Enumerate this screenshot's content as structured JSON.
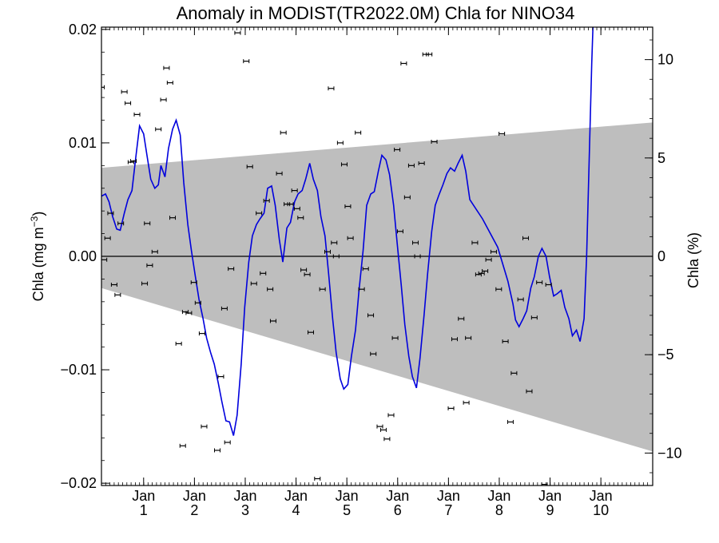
{
  "chart_data": {
    "type": "line",
    "title": "Anomaly in MODIST(TR2022.0M) Chla for NINO34",
    "ylabel_left": "Chla (mg m⁻³)",
    "ylabel_left_main": "Chla (mg m",
    "ylabel_left_sup": "−3",
    "ylabel_left_close": ")",
    "ylabel_right": "Chla (%)",
    "x_range": [
      0,
      10.85
    ],
    "y_left_range": [
      -0.0202,
      0.0202
    ],
    "y_right_range": [
      -11.65,
      11.65
    ],
    "x_ticks": [
      {
        "x": 0.83,
        "label": "Jan",
        "sub": "1"
      },
      {
        "x": 1.83,
        "label": "Jan",
        "sub": "2"
      },
      {
        "x": 2.83,
        "label": "Jan",
        "sub": "3"
      },
      {
        "x": 3.83,
        "label": "Jan",
        "sub": "4"
      },
      {
        "x": 4.83,
        "label": "Jan",
        "sub": "5"
      },
      {
        "x": 5.83,
        "label": "Jan",
        "sub": "6"
      },
      {
        "x": 6.83,
        "label": "Jan",
        "sub": "7"
      },
      {
        "x": 7.83,
        "label": "Jan",
        "sub": "8"
      },
      {
        "x": 8.83,
        "label": "Jan",
        "sub": "9"
      },
      {
        "x": 9.83,
        "label": "Jan",
        "sub": "10"
      }
    ],
    "y_left_ticks": [
      {
        "v": 0.02,
        "label": "0.02"
      },
      {
        "v": 0.01,
        "label": "0.01"
      },
      {
        "v": 0.0,
        "label": "0.00"
      },
      {
        "v": -0.01,
        "label": "−0.01"
      },
      {
        "v": -0.02,
        "label": "−0.02"
      }
    ],
    "y_right_ticks": [
      {
        "v": 10,
        "label": "10"
      },
      {
        "v": 5,
        "label": "5"
      },
      {
        "v": 0,
        "label": "0"
      },
      {
        "v": -5,
        "label": "−5"
      },
      {
        "v": -10,
        "label": "−10"
      }
    ],
    "shaded_band": {
      "upper": [
        [
          0,
          0.0078
        ],
        [
          10.85,
          0.0118
        ]
      ],
      "lower": [
        [
          0,
          -0.0028
        ],
        [
          10.85,
          -0.0172
        ]
      ],
      "color": "#bebebe"
    },
    "zero_line": 0.0,
    "series": [
      {
        "color": "#0000dd",
        "points": [
          [
            0.0,
            0.0053
          ],
          [
            0.08,
            0.0055
          ],
          [
            0.15,
            0.0048
          ],
          [
            0.22,
            0.0035
          ],
          [
            0.3,
            0.0024
          ],
          [
            0.37,
            0.0023
          ],
          [
            0.45,
            0.0038
          ],
          [
            0.52,
            0.005
          ],
          [
            0.6,
            0.0058
          ],
          [
            0.67,
            0.0085
          ],
          [
            0.75,
            0.0115
          ],
          [
            0.83,
            0.0108
          ],
          [
            0.9,
            0.0088
          ],
          [
            0.97,
            0.0068
          ],
          [
            1.05,
            0.006
          ],
          [
            1.12,
            0.0063
          ],
          [
            1.17,
            0.008
          ],
          [
            1.25,
            0.007
          ],
          [
            1.32,
            0.0095
          ],
          [
            1.4,
            0.0112
          ],
          [
            1.47,
            0.012
          ],
          [
            1.55,
            0.0107
          ],
          [
            1.62,
            0.0065
          ],
          [
            1.7,
            0.0028
          ],
          [
            1.77,
            0.0005
          ],
          [
            1.85,
            -0.0018
          ],
          [
            1.92,
            -0.0038
          ],
          [
            2.0,
            -0.0055
          ],
          [
            2.07,
            -0.0072
          ],
          [
            2.15,
            -0.0085
          ],
          [
            2.22,
            -0.0095
          ],
          [
            2.3,
            -0.0112
          ],
          [
            2.37,
            -0.0128
          ],
          [
            2.45,
            -0.0145
          ],
          [
            2.52,
            -0.0146
          ],
          [
            2.6,
            -0.0158
          ],
          [
            2.67,
            -0.014
          ],
          [
            2.75,
            -0.0095
          ],
          [
            2.82,
            -0.0045
          ],
          [
            2.9,
            -0.0005
          ],
          [
            2.97,
            0.0018
          ],
          [
            3.05,
            0.0028
          ],
          [
            3.12,
            0.0033
          ],
          [
            3.2,
            0.0038
          ],
          [
            3.27,
            0.006
          ],
          [
            3.35,
            0.0062
          ],
          [
            3.42,
            0.0045
          ],
          [
            3.5,
            0.0015
          ],
          [
            3.57,
            -0.0005
          ],
          [
            3.65,
            0.0025
          ],
          [
            3.72,
            0.003
          ],
          [
            3.8,
            0.0048
          ],
          [
            3.87,
            0.0055
          ],
          [
            3.95,
            0.0058
          ],
          [
            4.02,
            0.0068
          ],
          [
            4.1,
            0.0082
          ],
          [
            4.17,
            0.0068
          ],
          [
            4.25,
            0.0058
          ],
          [
            4.32,
            0.0035
          ],
          [
            4.4,
            0.0018
          ],
          [
            4.47,
            -0.0015
          ],
          [
            4.55,
            -0.0055
          ],
          [
            4.62,
            -0.0085
          ],
          [
            4.7,
            -0.0108
          ],
          [
            4.77,
            -0.0117
          ],
          [
            4.85,
            -0.0113
          ],
          [
            4.92,
            -0.0088
          ],
          [
            5.0,
            -0.0065
          ],
          [
            5.07,
            -0.003
          ],
          [
            5.15,
            0.0005
          ],
          [
            5.22,
            0.0045
          ],
          [
            5.3,
            0.0055
          ],
          [
            5.37,
            0.0057
          ],
          [
            5.45,
            0.0075
          ],
          [
            5.52,
            0.0089
          ],
          [
            5.6,
            0.0085
          ],
          [
            5.67,
            0.0072
          ],
          [
            5.75,
            0.0045
          ],
          [
            5.82,
            0.0012
          ],
          [
            5.9,
            -0.0025
          ],
          [
            5.97,
            -0.006
          ],
          [
            6.05,
            -0.0088
          ],
          [
            6.12,
            -0.0106
          ],
          [
            6.2,
            -0.0116
          ],
          [
            6.27,
            -0.009
          ],
          [
            6.35,
            -0.0052
          ],
          [
            6.42,
            -0.0015
          ],
          [
            6.5,
            0.0022
          ],
          [
            6.57,
            0.0045
          ],
          [
            6.65,
            0.0055
          ],
          [
            6.72,
            0.0063
          ],
          [
            6.8,
            0.0073
          ],
          [
            6.87,
            0.0078
          ],
          [
            6.95,
            0.0075
          ],
          [
            7.02,
            0.0082
          ],
          [
            7.1,
            0.0089
          ],
          [
            7.17,
            0.0075
          ],
          [
            7.25,
            0.005
          ],
          [
            7.5,
            0.0033
          ],
          [
            7.8,
            0.0008
          ],
          [
            8.0,
            -0.0022
          ],
          [
            8.1,
            -0.0042
          ],
          [
            8.15,
            -0.0056
          ],
          [
            8.22,
            -0.0062
          ],
          [
            8.3,
            -0.0055
          ],
          [
            8.37,
            -0.0048
          ],
          [
            8.45,
            -0.0028
          ],
          [
            8.52,
            -0.0018
          ],
          [
            8.6,
            0.0
          ],
          [
            8.67,
            0.0007
          ],
          [
            8.75,
            0.0
          ],
          [
            8.82,
            -0.0018
          ],
          [
            8.9,
            -0.0035
          ],
          [
            8.97,
            -0.0033
          ],
          [
            9.05,
            -0.003
          ],
          [
            9.12,
            -0.0045
          ],
          [
            9.2,
            -0.0055
          ],
          [
            9.27,
            -0.007
          ],
          [
            9.35,
            -0.0065
          ],
          [
            9.42,
            -0.0075
          ],
          [
            9.5,
            -0.0055
          ],
          [
            9.55,
            0.0
          ],
          [
            9.6,
            0.0085
          ],
          [
            9.65,
            0.017
          ],
          [
            9.68,
            0.021
          ]
        ]
      }
    ],
    "error_points": [
      [
        0.0,
        0.0149
      ],
      [
        0.05,
        -0.0003
      ],
      [
        0.12,
        0.0016
      ],
      [
        0.18,
        0.0038
      ],
      [
        0.25,
        -0.0025
      ],
      [
        0.32,
        -0.0034
      ],
      [
        0.38,
        0.0029
      ],
      [
        0.45,
        0.0145
      ],
      [
        0.52,
        0.0135
      ],
      [
        0.58,
        0.0083
      ],
      [
        0.63,
        0.0084
      ],
      [
        0.7,
        0.0125
      ],
      [
        0.85,
        -0.0024
      ],
      [
        0.9,
        0.0029
      ],
      [
        0.95,
        -0.0008
      ],
      [
        1.05,
        0.0004
      ],
      [
        1.12,
        0.0112
      ],
      [
        1.22,
        0.0138
      ],
      [
        1.28,
        0.0166
      ],
      [
        1.35,
        0.0153
      ],
      [
        1.4,
        0.0034
      ],
      [
        1.52,
        -0.0077
      ],
      [
        1.6,
        -0.0167
      ],
      [
        1.65,
        -0.0049
      ],
      [
        1.72,
        -0.005
      ],
      [
        1.82,
        -0.0023
      ],
      [
        1.9,
        -0.0041
      ],
      [
        1.98,
        -0.0068
      ],
      [
        2.02,
        -0.015
      ],
      [
        2.28,
        -0.0171
      ],
      [
        2.35,
        -0.0106
      ],
      [
        2.42,
        -0.0046
      ],
      [
        2.48,
        -0.0164
      ],
      [
        2.55,
        -0.0011
      ],
      [
        2.68,
        0.0197
      ],
      [
        2.85,
        0.0172
      ],
      [
        2.92,
        0.0079
      ],
      [
        3.0,
        -0.0024
      ],
      [
        3.1,
        0.0038
      ],
      [
        3.18,
        -0.0015
      ],
      [
        3.25,
        0.0049
      ],
      [
        3.32,
        -0.0029
      ],
      [
        3.38,
        -0.0057
      ],
      [
        3.5,
        0.0073
      ],
      [
        3.58,
        0.0109
      ],
      [
        3.65,
        0.0046
      ],
      [
        3.72,
        0.0046
      ],
      [
        3.8,
        0.0058
      ],
      [
        3.85,
        0.0042
      ],
      [
        3.92,
        0.0034
      ],
      [
        3.98,
        -0.0012
      ],
      [
        4.05,
        -0.0016
      ],
      [
        4.12,
        -0.0067
      ],
      [
        4.25,
        -0.0196
      ],
      [
        4.35,
        -0.0029
      ],
      [
        4.45,
        0.0004
      ],
      [
        4.52,
        0.0148
      ],
      [
        4.58,
        0.0012
      ],
      [
        4.62,
        0.0
      ],
      [
        4.7,
        0.01
      ],
      [
        4.78,
        0.0081
      ],
      [
        4.85,
        0.0044
      ],
      [
        4.9,
        0.0016
      ],
      [
        5.05,
        0.0109
      ],
      [
        5.12,
        -0.0029
      ],
      [
        5.2,
        -0.0011
      ],
      [
        5.3,
        -0.0052
      ],
      [
        5.35,
        -0.0086
      ],
      [
        5.48,
        -0.015
      ],
      [
        5.55,
        -0.0153
      ],
      [
        5.62,
        -0.0161
      ],
      [
        5.7,
        -0.014
      ],
      [
        5.78,
        -0.0072
      ],
      [
        5.82,
        0.0094
      ],
      [
        5.88,
        0.0022
      ],
      [
        5.95,
        0.017
      ],
      [
        6.02,
        0.0052
      ],
      [
        6.1,
        0.008
      ],
      [
        6.18,
        0.0012
      ],
      [
        6.22,
        0.0
      ],
      [
        6.3,
        0.0082
      ],
      [
        6.38,
        0.0178
      ],
      [
        6.45,
        0.0178
      ],
      [
        6.55,
        0.0101
      ],
      [
        6.88,
        -0.0134
      ],
      [
        6.95,
        -0.0073
      ],
      [
        7.08,
        -0.0055
      ],
      [
        7.18,
        -0.0129
      ],
      [
        7.22,
        -0.0072
      ],
      [
        7.35,
        0.0012
      ],
      [
        7.42,
        -0.0016
      ],
      [
        7.48,
        -0.0015
      ],
      [
        7.55,
        -0.0013
      ],
      [
        7.62,
        -0.0003
      ],
      [
        7.72,
        0.0004
      ],
      [
        7.82,
        -0.0029
      ],
      [
        7.88,
        0.0108
      ],
      [
        7.95,
        -0.0075
      ],
      [
        8.05,
        -0.0146
      ],
      [
        8.12,
        -0.0103
      ],
      [
        8.25,
        -0.0038
      ],
      [
        8.35,
        0.0016
      ],
      [
        8.42,
        -0.0119
      ],
      [
        8.52,
        -0.0054
      ],
      [
        8.62,
        -0.0023
      ],
      [
        8.72,
        -0.0201
      ],
      [
        8.8,
        -0.0025
      ]
    ]
  }
}
